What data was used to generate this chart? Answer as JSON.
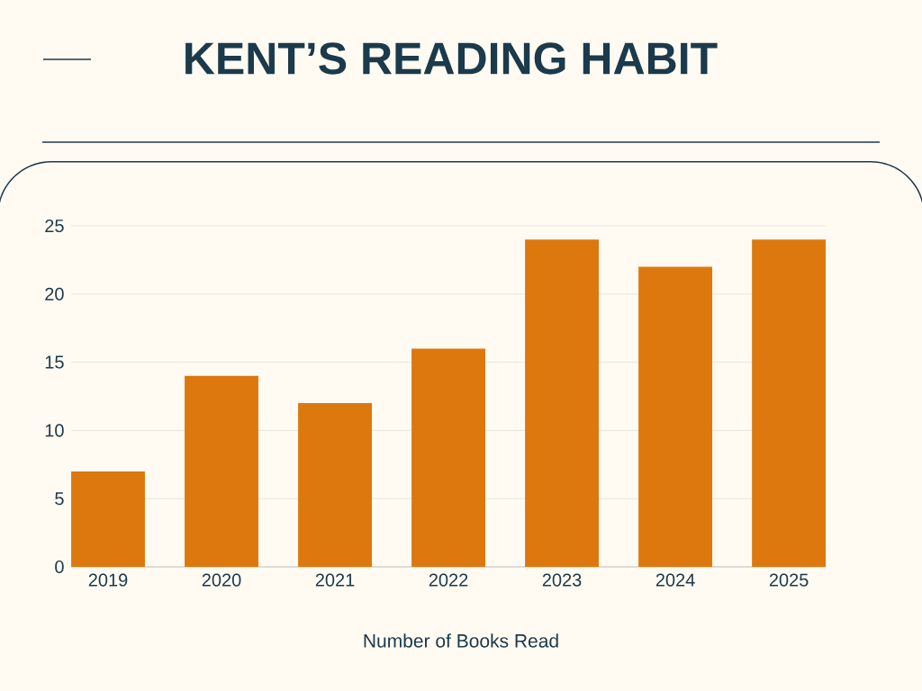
{
  "chart_data": {
    "type": "bar",
    "title": "KENT’S READING HABIT",
    "xlabel": "Number of Books Read",
    "categories": [
      "2019",
      "2020",
      "2021",
      "2022",
      "2023",
      "2024",
      "2025"
    ],
    "values": [
      7,
      14,
      12,
      16,
      24,
      22,
      24
    ],
    "color": "#dd780e",
    "ylim": [
      0,
      25
    ],
    "yticks": [
      0,
      5,
      10,
      15,
      20,
      25
    ],
    "grid": "y"
  }
}
